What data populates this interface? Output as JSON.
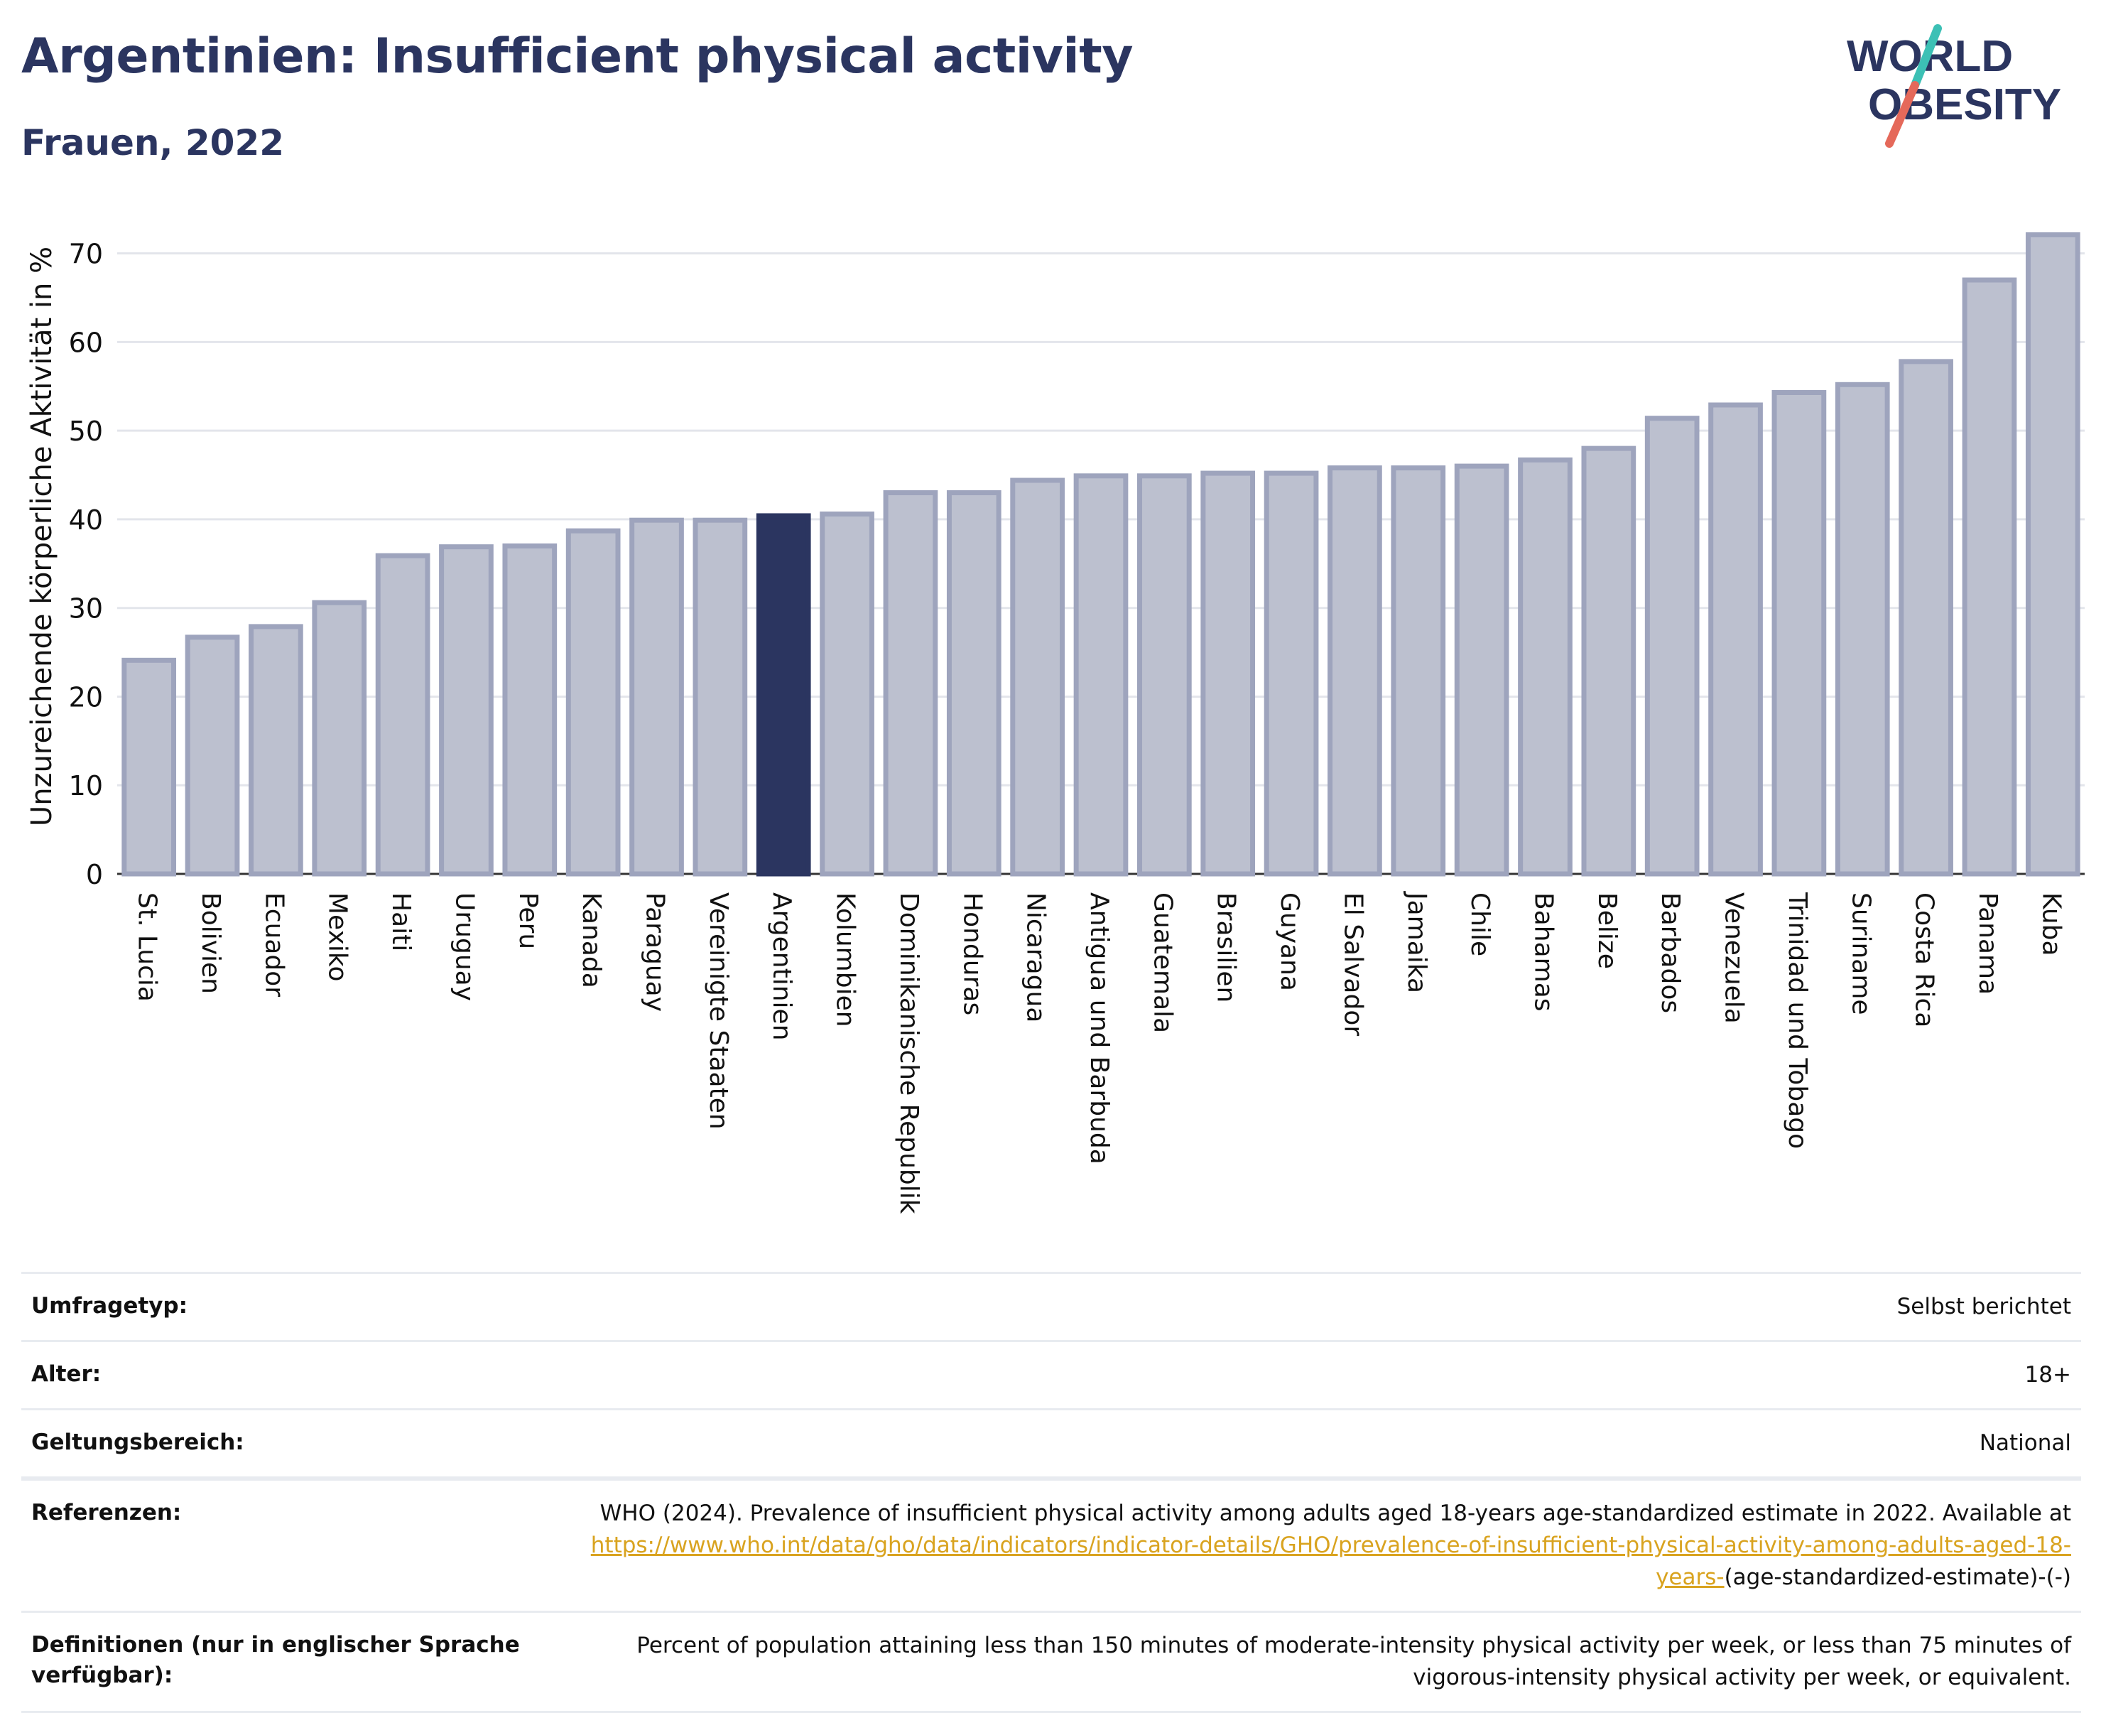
{
  "title": "Argentinien: Insufficient physical activity",
  "subtitle": "Frauen, 2022",
  "logo": {
    "line1": "WORLD",
    "line2": "OBESITY",
    "accent_teal": "#3cc0b5",
    "accent_red": "#e5695a"
  },
  "colors": {
    "bar": "#bcc0cf",
    "bar_border": "#9ea4bd",
    "highlight": "#2b3560",
    "grid": "#e3e5eb",
    "axis": "#333333"
  },
  "chart_data": {
    "type": "bar",
    "title": "Argentinien: Insufficient physical activity",
    "subtitle": "Frauen, 2022",
    "xlabel": "",
    "ylabel": "Unzureichende körperliche Aktivität in %",
    "ylim": [
      0,
      75
    ],
    "yticks": [
      0,
      10,
      20,
      30,
      40,
      50,
      60,
      70
    ],
    "grid": true,
    "highlight": "Argentinien",
    "categories": [
      "St. Lucia",
      "Bolivien",
      "Ecuador",
      "Mexiko",
      "Haiti",
      "Uruguay",
      "Peru",
      "Kanada",
      "Paraguay",
      "Vereinigte Staaten",
      "Argentinien",
      "Kolumbien",
      "Dominikanische Republik",
      "Honduras",
      "Nicaragua",
      "Antigua und Barbuda",
      "Guatemala",
      "Brasilien",
      "Guyana",
      "El Salvador",
      "Jamaika",
      "Chile",
      "Bahamas",
      "Belize",
      "Barbados",
      "Venezuela",
      "Trinidad und Tobago",
      "Suriname",
      "Costa Rica",
      "Panama",
      "Kuba"
    ],
    "values": [
      24.1,
      26.7,
      27.9,
      30.6,
      35.9,
      36.9,
      37.0,
      38.7,
      39.9,
      39.9,
      40.4,
      40.6,
      43.0,
      43.0,
      44.4,
      44.9,
      44.9,
      45.2,
      45.2,
      45.8,
      45.8,
      46.0,
      46.7,
      48.0,
      51.4,
      52.9,
      54.3,
      55.2,
      57.8,
      67.0,
      72.1
    ]
  },
  "info": {
    "rows": [
      {
        "label": "Umfragetyp:",
        "value": "Selbst berichtet"
      },
      {
        "label": "Alter:",
        "value": "18+"
      },
      {
        "label": "Geltungsbereich:",
        "value": "National"
      }
    ],
    "references": {
      "label": "Referenzen:",
      "text": "WHO (2024). Prevalence of insufficient physical activity among adults aged 18-years age-standardized estimate in 2022. Available at",
      "link": "https://www.who.int/data/gho/data/indicators/indicator-details/GHO/prevalence-of-insufficient-physical-activity-among-adults-aged-18-years-",
      "suffix": "(age-standardized-estimate)-(-)"
    },
    "definitions": {
      "label": "Definitionen (nur in englischer Sprache verfügbar):",
      "value": "Percent of population attaining less than 150 minutes of moderate-intensity physical activity per week, or less than 75 minutes of vigorous-intensity physical activity per week, or equivalent."
    }
  }
}
